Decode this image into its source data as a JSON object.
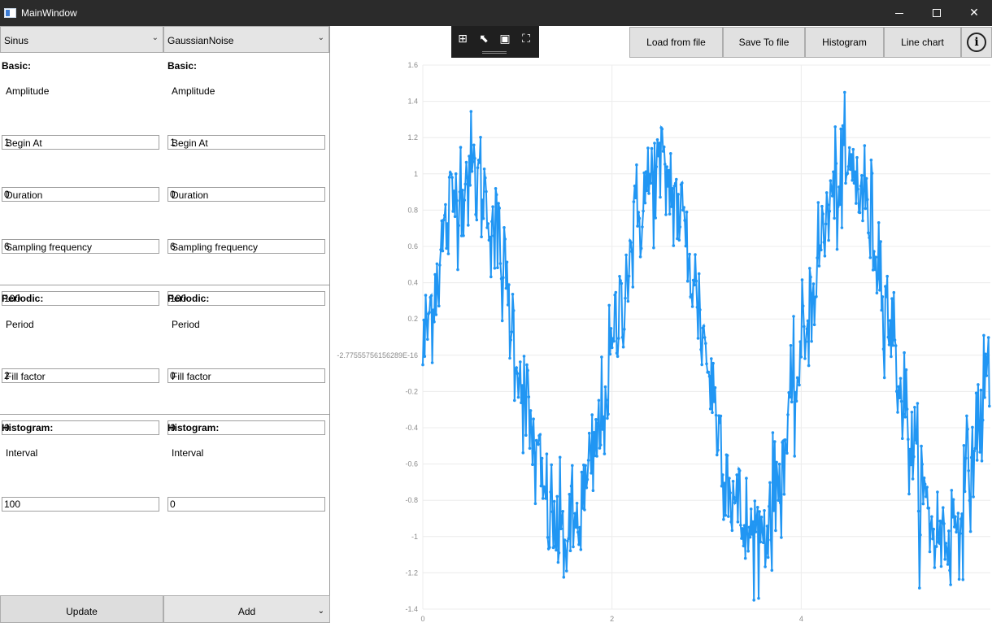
{
  "window": {
    "title": "MainWindow"
  },
  "signal_selectors": {
    "left": "Sinus",
    "right": "GaussianNoise"
  },
  "left_params": {
    "basic_header": "Basic:",
    "amplitude_label": "Amplitude",
    "amplitude_value": "1",
    "begin_label": "Begin At",
    "begin_value": "0",
    "duration_label": "Duration",
    "duration_value": "6",
    "sampling_label": "Sampling frequency",
    "sampling_value": "100",
    "periodic_header": "Periodic:",
    "period_label": "Period",
    "period_value": "2",
    "fill_label": "Fill factor",
    "fill_value": "0",
    "hist_header": "Histogram:",
    "interval_label": "Interval",
    "interval_value": "100"
  },
  "right_params": {
    "basic_header": "Basic:",
    "amplitude_label": "Amplitude",
    "amplitude_value": "1",
    "begin_label": "Begin At",
    "begin_value": "0",
    "duration_label": "Duration",
    "duration_value": "6",
    "sampling_label": "Sampling frequency",
    "sampling_value": "100",
    "periodic_header": "Periodic:",
    "period_label": "Period",
    "period_value": "0",
    "fill_label": "Fill factor",
    "fill_value": "0",
    "hist_header": "Histogram:",
    "interval_label": "Interval",
    "interval_value": "0"
  },
  "bottom": {
    "update_label": "Update",
    "add_label": "Add"
  },
  "toolbar": {
    "load_label": "Load from file",
    "save_label": "Save To file",
    "histogram_label": "Histogram",
    "linechart_label": "Line chart"
  },
  "icons": [
    "app-icon",
    "minimize-icon",
    "maximize-icon",
    "close-icon",
    "chevron-down-icon",
    "live-visual-tree-icon",
    "select-element-icon",
    "display-layout-adorners-icon",
    "track-focus-icon",
    "info-icon"
  ],
  "colors": {
    "series": "#2196f3",
    "titlebar": "#2b2b2b"
  },
  "chart_data": {
    "type": "line",
    "x_ticks": [
      "0",
      "2",
      "4"
    ],
    "y_ticks": [
      "1.6",
      "1.4",
      "1.2",
      "1",
      "0.8",
      "0.6",
      "0.4",
      "0.2",
      "-2.77555756156289E-16",
      "-0.2",
      "-0.4",
      "-0.6",
      "-0.8",
      "-1",
      "-1.2",
      "-1.4"
    ],
    "xlim": [
      0,
      6
    ],
    "ylim": [
      -1.4,
      1.6
    ],
    "series": [
      {
        "description": "sine (amplitude 1, period 2) plus Gaussian noise, sampled at 100 Hz over 6 s",
        "x_start": 0,
        "x_step": 0.01,
        "count": 600,
        "values_note": "y = sin(pi*x) + noise"
      }
    ]
  }
}
